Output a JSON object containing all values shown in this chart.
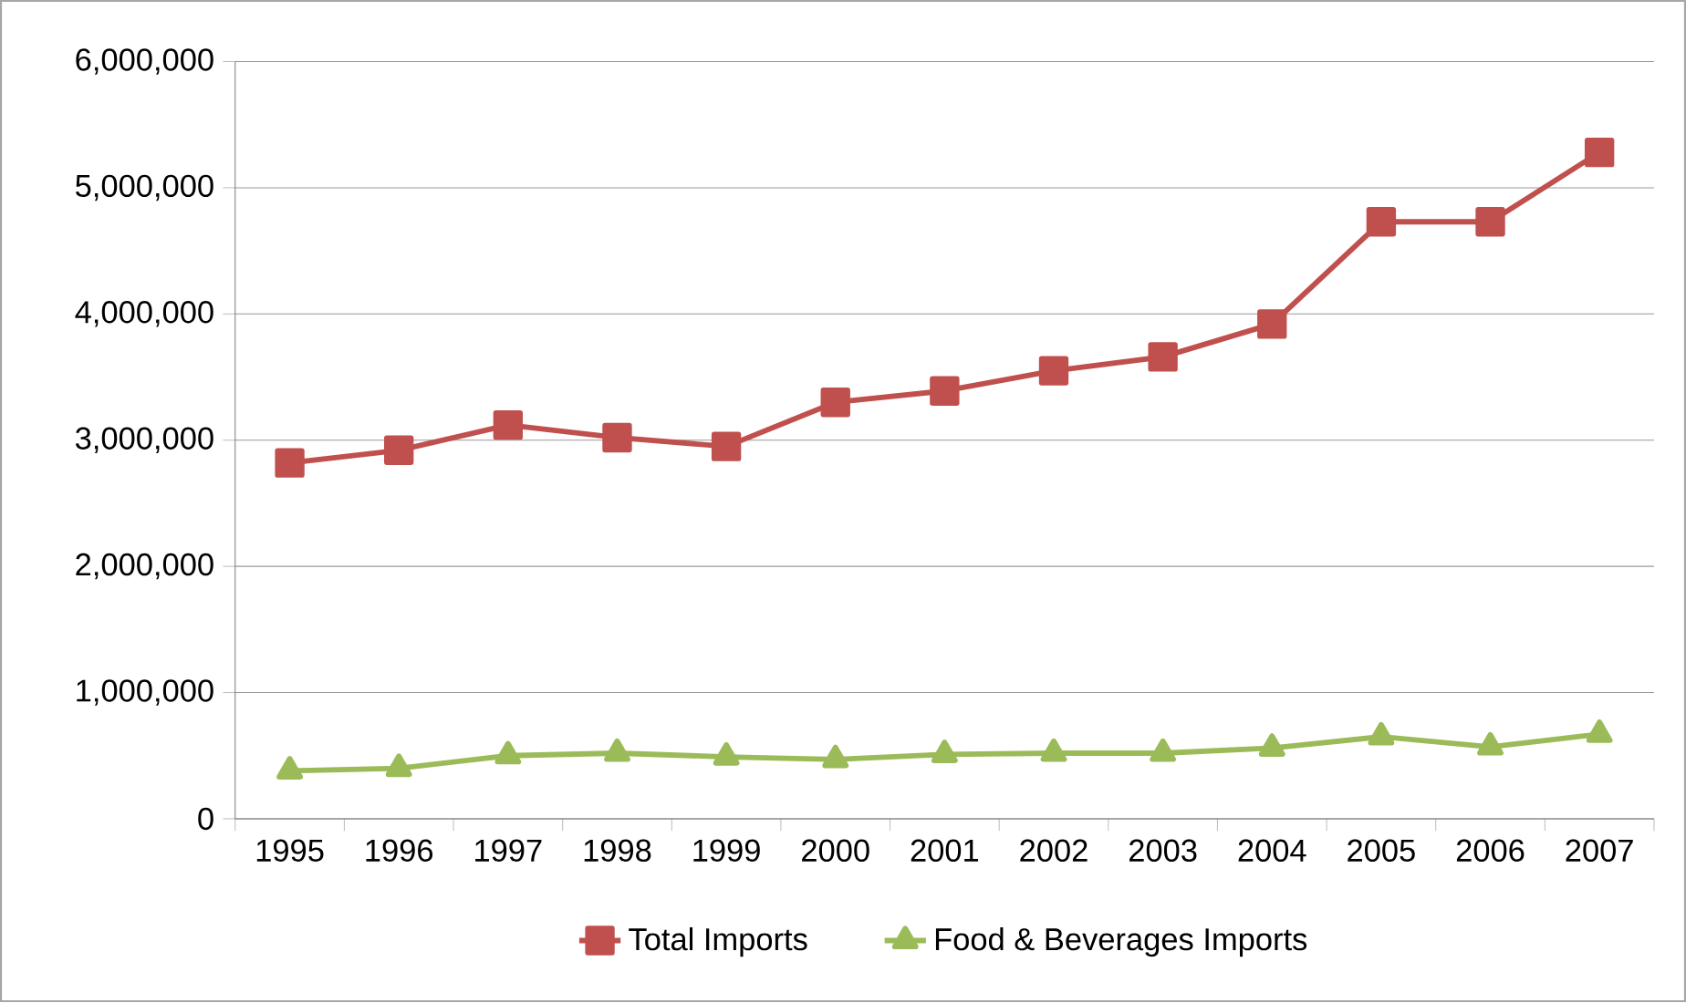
{
  "chart_data": {
    "type": "line",
    "categories": [
      "1995",
      "1996",
      "1997",
      "1998",
      "1999",
      "2000",
      "2001",
      "2002",
      "2003",
      "2004",
      "2005",
      "2006",
      "2007"
    ],
    "series": [
      {
        "name": "Total Imports",
        "color": "#c0504d",
        "marker": "square",
        "values": [
          2820000,
          2920000,
          3120000,
          3020000,
          2950000,
          3300000,
          3390000,
          3550000,
          3660000,
          3920000,
          4730000,
          4730000,
          5280000
        ]
      },
      {
        "name": "Food & Beverages Imports",
        "color": "#9bbb59",
        "marker": "triangle",
        "values": [
          380000,
          400000,
          500000,
          520000,
          490000,
          470000,
          510000,
          520000,
          520000,
          560000,
          650000,
          570000,
          670000
        ]
      }
    ],
    "ylim": [
      0,
      6000000
    ],
    "yticks": [
      {
        "value": 0,
        "label": "0"
      },
      {
        "value": 1000000,
        "label": "1,000,000"
      },
      {
        "value": 2000000,
        "label": "2,000,000"
      },
      {
        "value": 3000000,
        "label": "3,000,000"
      },
      {
        "value": 4000000,
        "label": "4,000,000"
      },
      {
        "value": 5000000,
        "label": "5,000,000"
      },
      {
        "value": 6000000,
        "label": "6,000,000"
      }
    ],
    "grid": "y",
    "legend": "bottom",
    "line_style": "solid"
  }
}
